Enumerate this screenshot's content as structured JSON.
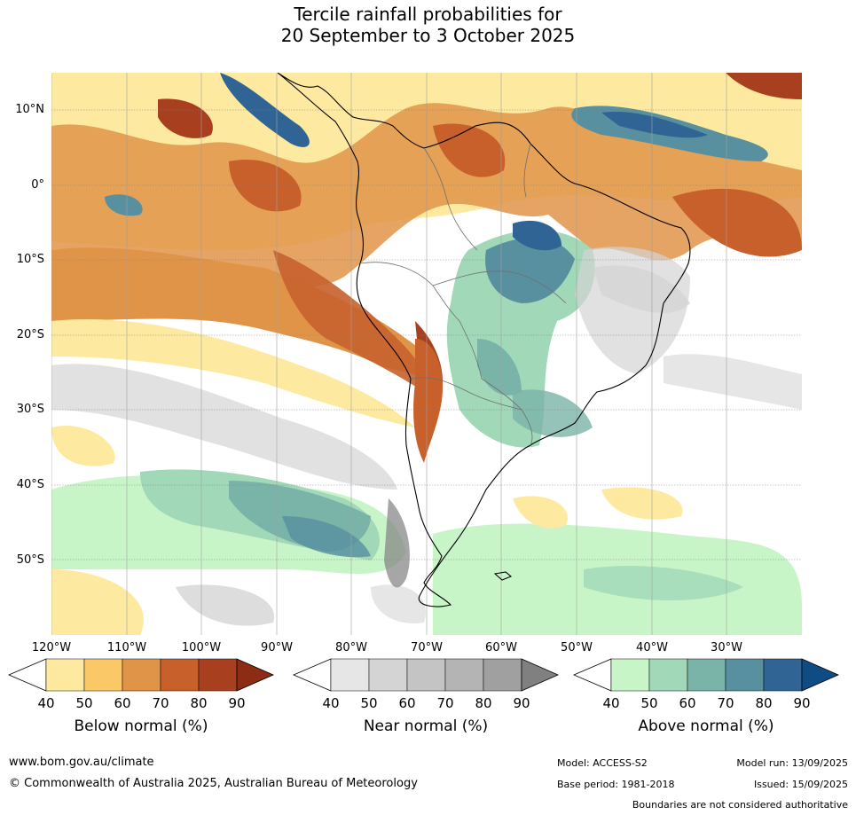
{
  "title": {
    "line1": "Tercile rainfall probabilities for",
    "line2": "20 September to 3 October 2025"
  },
  "map": {
    "lat_labels": [
      "10°N",
      "0°",
      "10°S",
      "20°S",
      "30°S",
      "40°S",
      "50°S"
    ],
    "lon_labels": [
      "120°W",
      "110°W",
      "100°W",
      "90°W",
      "80°W",
      "70°W",
      "60°W",
      "50°W",
      "40°W",
      "30°W"
    ],
    "gridlines": true
  },
  "colorbars": [
    {
      "title": "Below normal (%)",
      "ticks": [
        "40",
        "50",
        "60",
        "70",
        "80",
        "90"
      ],
      "colors": [
        "#fdeaa0",
        "#fbc868",
        "#e09448",
        "#c8602c",
        "#a84020",
        "#8c2c14"
      ]
    },
    {
      "title": "Near normal (%)",
      "ticks": [
        "40",
        "50",
        "60",
        "70",
        "80",
        "90"
      ],
      "colors": [
        "#e6e6e6",
        "#d4d4d4",
        "#c4c4c4",
        "#b4b4b4",
        "#a0a0a0",
        "#808080"
      ]
    },
    {
      "title": "Above normal (%)",
      "ticks": [
        "40",
        "50",
        "60",
        "70",
        "80",
        "90"
      ],
      "colors": [
        "#c8f5c8",
        "#a0d8b8",
        "#7ab4a8",
        "#5890a0",
        "#306494",
        "#104c84"
      ]
    }
  ],
  "footer": {
    "website": "www.bom.gov.au/climate",
    "copyright": "© Commonwealth of Australia 2025, Australian Bureau of Meteorology",
    "model": "Model: ACCESS-S2",
    "model_run": "Model run: 13/09/2025",
    "base_period": "Base period: 1981-2018",
    "issued": "Issued: 15/09/2025",
    "disclaimer": "Boundaries are not considered authoritative"
  }
}
